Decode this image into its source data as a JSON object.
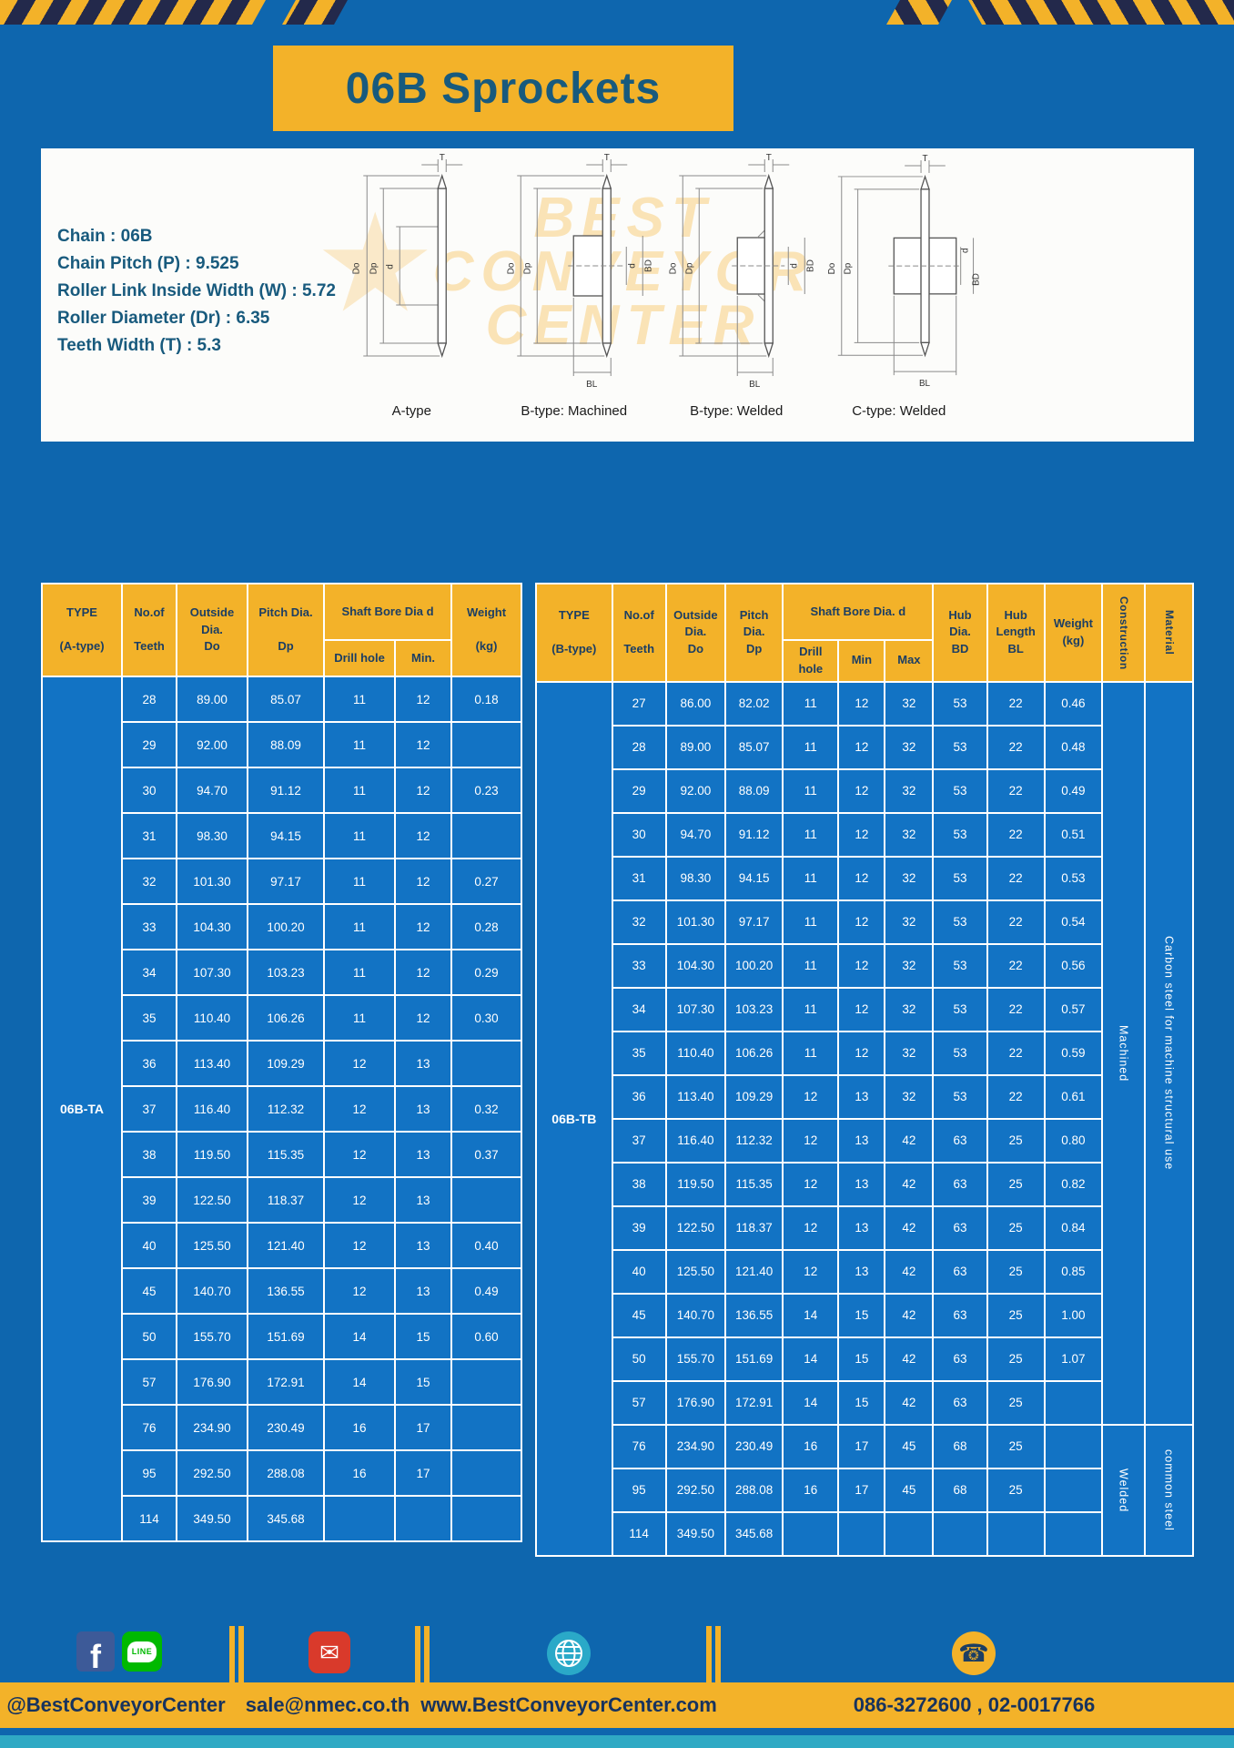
{
  "page": {
    "title": "06B Sprockets"
  },
  "colors": {
    "page_blue": "#0e66ae",
    "cell_blue": "#1273c4",
    "accent_yellow": "#f3b229",
    "navy": "#23294b",
    "teal": "#2fa9c4",
    "title_text": "#185a7d"
  },
  "specs": {
    "items": [
      "Chain  :  06B",
      "Chain Pitch (P)  :  9.525",
      "Roller Link Inside Width (W)  :  5.72",
      "Roller Diameter (Dr)  :  6.35",
      "Teeth Width (T)  :  5.3"
    ]
  },
  "watermark": {
    "lines": [
      "BEST",
      "CONVEYOR",
      "CENTER"
    ],
    "star": "★"
  },
  "diagrams": {
    "items": [
      {
        "caption": "A-type",
        "dims": {
          "T": "T",
          "Do": "Do",
          "Dp": "Dp",
          "d": "d"
        }
      },
      {
        "caption": "B-type: Machined",
        "dims": {
          "T": "T",
          "Do": "Do",
          "Dp": "Dp",
          "d": "d",
          "BD": "BD",
          "BL": "BL"
        }
      },
      {
        "caption": "B-type: Welded",
        "dims": {
          "T": "T",
          "Do": "Do",
          "Dp": "Dp",
          "d": "d",
          "BD": "BD",
          "BL": "BL"
        }
      },
      {
        "caption": "C-type: Welded",
        "dims": {
          "T": "T",
          "Do": "Do",
          "Dp": "Dp",
          "d": "d",
          "BD": "BD",
          "BL": "BL"
        }
      }
    ]
  },
  "table_a": {
    "headers": {
      "type": "TYPE\n\n(A-type)",
      "teeth": "No.of\n\nTeeth",
      "outside": "Outside\nDia.\nDo",
      "pitch": "Pitch Dia.\n\nDp",
      "bore_group": "Shaft Bore Dia d",
      "drill": "Drill hole",
      "min": "Min.",
      "weight": "Weight\n\n(kg)"
    },
    "type_value": "06B-TA",
    "rows": [
      [
        "28",
        "89.00",
        "85.07",
        "11",
        "12",
        "0.18"
      ],
      [
        "29",
        "92.00",
        "88.09",
        "11",
        "12",
        ""
      ],
      [
        "30",
        "94.70",
        "91.12",
        "11",
        "12",
        "0.23"
      ],
      [
        "31",
        "98.30",
        "94.15",
        "11",
        "12",
        ""
      ],
      [
        "32",
        "101.30",
        "97.17",
        "11",
        "12",
        "0.27"
      ],
      [
        "33",
        "104.30",
        "100.20",
        "11",
        "12",
        "0.28"
      ],
      [
        "34",
        "107.30",
        "103.23",
        "11",
        "12",
        "0.29"
      ],
      [
        "35",
        "110.40",
        "106.26",
        "11",
        "12",
        "0.30"
      ],
      [
        "36",
        "113.40",
        "109.29",
        "12",
        "13",
        ""
      ],
      [
        "37",
        "116.40",
        "112.32",
        "12",
        "13",
        "0.32"
      ],
      [
        "38",
        "119.50",
        "115.35",
        "12",
        "13",
        "0.37"
      ],
      [
        "39",
        "122.50",
        "118.37",
        "12",
        "13",
        ""
      ],
      [
        "40",
        "125.50",
        "121.40",
        "12",
        "13",
        "0.40"
      ],
      [
        "45",
        "140.70",
        "136.55",
        "12",
        "13",
        "0.49"
      ],
      [
        "50",
        "155.70",
        "151.69",
        "14",
        "15",
        "0.60"
      ],
      [
        "57",
        "176.90",
        "172.91",
        "14",
        "15",
        ""
      ],
      [
        "76",
        "234.90",
        "230.49",
        "16",
        "17",
        ""
      ],
      [
        "95",
        "292.50",
        "288.08",
        "16",
        "17",
        ""
      ],
      [
        "114",
        "349.50",
        "345.68",
        "",
        "",
        ""
      ]
    ]
  },
  "table_b": {
    "headers": {
      "type": "TYPE\n\n(B-type)",
      "teeth": "No.of\n\nTeeth",
      "outside": "Outside\nDia.\nDo",
      "pitch": "Pitch\nDia.\nDp",
      "bore_group": "Shaft Bore Dia.  d",
      "drill": "Drill hole",
      "min": "Min",
      "max": "Max",
      "hub_dia": "Hub\nDia.\nBD",
      "hub_len": "Hub\nLength\nBL",
      "weight": "Weight\n(kg)",
      "construction": "Construction",
      "material": "Material"
    },
    "type_value": "06B-TB",
    "rows": [
      [
        "27",
        "86.00",
        "82.02",
        "11",
        "12",
        "32",
        "53",
        "22",
        "0.46"
      ],
      [
        "28",
        "89.00",
        "85.07",
        "11",
        "12",
        "32",
        "53",
        "22",
        "0.48"
      ],
      [
        "29",
        "92.00",
        "88.09",
        "11",
        "12",
        "32",
        "53",
        "22",
        "0.49"
      ],
      [
        "30",
        "94.70",
        "91.12",
        "11",
        "12",
        "32",
        "53",
        "22",
        "0.51"
      ],
      [
        "31",
        "98.30",
        "94.15",
        "11",
        "12",
        "32",
        "53",
        "22",
        "0.53"
      ],
      [
        "32",
        "101.30",
        "97.17",
        "11",
        "12",
        "32",
        "53",
        "22",
        "0.54"
      ],
      [
        "33",
        "104.30",
        "100.20",
        "11",
        "12",
        "32",
        "53",
        "22",
        "0.56"
      ],
      [
        "34",
        "107.30",
        "103.23",
        "11",
        "12",
        "32",
        "53",
        "22",
        "0.57"
      ],
      [
        "35",
        "110.40",
        "106.26",
        "11",
        "12",
        "32",
        "53",
        "22",
        "0.59"
      ],
      [
        "36",
        "113.40",
        "109.29",
        "12",
        "13",
        "32",
        "53",
        "22",
        "0.61"
      ],
      [
        "37",
        "116.40",
        "112.32",
        "12",
        "13",
        "42",
        "63",
        "25",
        "0.80"
      ],
      [
        "38",
        "119.50",
        "115.35",
        "12",
        "13",
        "42",
        "63",
        "25",
        "0.82"
      ],
      [
        "39",
        "122.50",
        "118.37",
        "12",
        "13",
        "42",
        "63",
        "25",
        "0.84"
      ],
      [
        "40",
        "125.50",
        "121.40",
        "12",
        "13",
        "42",
        "63",
        "25",
        "0.85"
      ],
      [
        "45",
        "140.70",
        "136.55",
        "14",
        "15",
        "42",
        "63",
        "25",
        "1.00"
      ],
      [
        "50",
        "155.70",
        "151.69",
        "14",
        "15",
        "42",
        "63",
        "25",
        "1.07"
      ],
      [
        "57",
        "176.90",
        "172.91",
        "14",
        "15",
        "42",
        "63",
        "25",
        ""
      ],
      [
        "76",
        "234.90",
        "230.49",
        "16",
        "17",
        "45",
        "68",
        "25",
        ""
      ],
      [
        "95",
        "292.50",
        "288.08",
        "16",
        "17",
        "45",
        "68",
        "25",
        ""
      ],
      [
        "114",
        "349.50",
        "345.68",
        "",
        "",
        "",
        "",
        "",
        ""
      ]
    ],
    "span_columns": [
      {
        "name": "construction",
        "spans": [
          {
            "label": "Machined",
            "rows": 17
          },
          {
            "label": "Welded",
            "rows": 3
          }
        ]
      },
      {
        "name": "material",
        "spans": [
          {
            "label": "Carbon steel for machine structural use",
            "rows": 17
          },
          {
            "label": "common steel",
            "rows": 3
          }
        ]
      }
    ]
  },
  "footer": {
    "sections": [
      {
        "label": "@BestConveyorCenter"
      },
      {
        "label": "sale@nmec.co.th"
      },
      {
        "label": "www.BestConveyorCenter.com"
      },
      {
        "label": "086-3272600 , 02-0017766"
      }
    ],
    "glyphs": {
      "facebook": "f",
      "line": "LINE",
      "mail": "✉",
      "phone": "☎"
    }
  }
}
